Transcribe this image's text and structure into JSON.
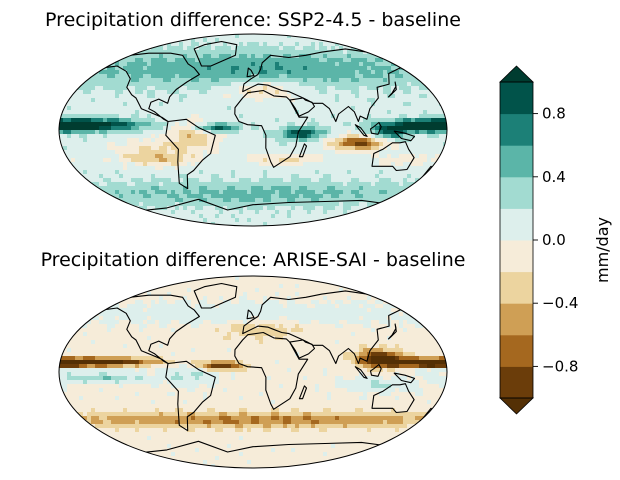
{
  "panels": [
    {
      "title": "Precipitation difference: SSP2-4.5 - baseline",
      "pattern": "ssp245"
    },
    {
      "title": "Precipitation difference: ARISE-SAI - baseline",
      "pattern": "arise"
    }
  ],
  "colorbar": {
    "label": "mm/day",
    "ticks": [
      "0.8",
      "0.4",
      "0.0",
      "−0.4",
      "−0.8"
    ],
    "levels": [
      -1.0,
      -0.8,
      -0.6,
      -0.4,
      -0.2,
      0.0,
      0.2,
      0.4,
      0.6,
      0.8,
      1.0
    ],
    "colors": [
      "#6b3d0a",
      "#a5681f",
      "#cf9f55",
      "#ecd49f",
      "#f6ecd9",
      "#ddefec",
      "#a2dbd1",
      "#5bb5a8",
      "#1c8077",
      "#01534a"
    ],
    "under_color": "#543005",
    "over_color": "#003c30",
    "extend": "both"
  }
}
